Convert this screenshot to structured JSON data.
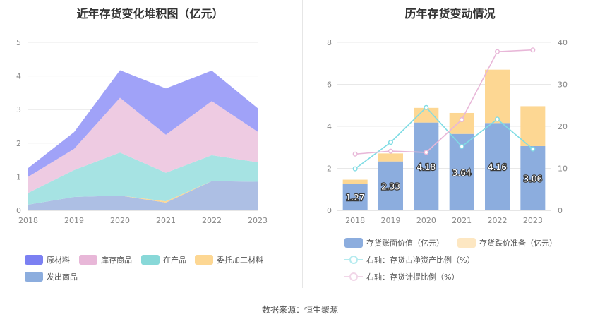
{
  "left_chart": {
    "title": "近年存货变化堆积图（亿元）",
    "chart_data": {
      "type": "area",
      "stacked": true,
      "x": [
        "2018",
        "2019",
        "2020",
        "2021",
        "2022",
        "2023"
      ],
      "ylim": [
        0,
        5
      ],
      "yticks": [
        "0",
        "1",
        "2",
        "3",
        "4",
        "5"
      ],
      "series": [
        {
          "name": "发出商品",
          "color": "#adbfe4",
          "values": [
            0.17,
            0.4,
            0.44,
            0.23,
            0.87,
            0.85
          ]
        },
        {
          "name": "委托加工材料",
          "color": "#fdd793",
          "values": [
            0.0,
            0.0,
            0.0,
            0.04,
            0.0,
            0.0
          ]
        },
        {
          "name": "在产品",
          "color": "#a6e3e3",
          "values": [
            0.35,
            0.8,
            1.28,
            0.85,
            0.77,
            0.58
          ]
        },
        {
          "name": "库存商品",
          "color": "#eecbe2",
          "values": [
            0.48,
            0.63,
            1.63,
            1.13,
            1.61,
            0.91
          ]
        },
        {
          "name": "原材料",
          "color": "#a0a2f8",
          "values": [
            0.26,
            0.5,
            0.82,
            1.38,
            0.91,
            0.7
          ]
        }
      ],
      "legend_order": [
        "原材料",
        "库存商品",
        "在产品",
        "委托加工材料",
        "发出商品"
      ],
      "legend_colors": [
        "#7b80f2",
        "#e8b7d8",
        "#88d8d8",
        "#fdd793",
        "#8cadde"
      ],
      "legend_placement": "bottom"
    }
  },
  "right_chart": {
    "title": "历年存货变动情况",
    "chart_data": {
      "type": "bar",
      "stacked": true,
      "categories": [
        "2018",
        "2019",
        "2020",
        "2021",
        "2022",
        "2023"
      ],
      "ylim_left": [
        0,
        8
      ],
      "yticks_left": [
        "0",
        "2",
        "4",
        "6",
        "8"
      ],
      "ylim_right": [
        0,
        40
      ],
      "yticks_right": [
        "0",
        "10",
        "20",
        "30",
        "40"
      ],
      "bar_series": [
        {
          "name": "存货账面价值（亿元）",
          "color": "#8cadde",
          "values": [
            1.27,
            2.33,
            4.18,
            3.64,
            4.16,
            3.06
          ],
          "labels": [
            "1.27",
            "2.33",
            "4.18",
            "3.64",
            "4.16",
            "3.06"
          ]
        },
        {
          "name": "存货跌价准备（亿元）",
          "color": "#fdd793",
          "values": [
            0.19,
            0.38,
            0.7,
            1.0,
            2.54,
            1.9
          ]
        }
      ],
      "line_series": [
        {
          "name": "右轴：存货占净资产比例（%）",
          "color": "#7fdce4",
          "values": [
            9.9,
            16.2,
            24.5,
            15.2,
            21.7,
            14.6
          ]
        },
        {
          "name": "右轴：存货计提比例（%）",
          "color": "#e8b7d8",
          "values": [
            13.4,
            14.1,
            13.8,
            21.6,
            37.8,
            38.2
          ]
        }
      ],
      "legend_placement": "bottom"
    }
  },
  "source_text": "数据来源：恒生聚源"
}
